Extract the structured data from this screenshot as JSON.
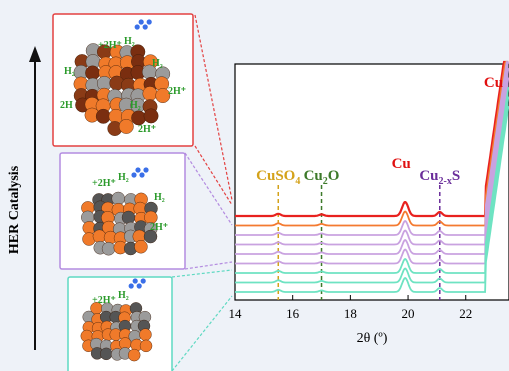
{
  "chart_data": {
    "type": "line",
    "title": "",
    "xlabel": "2θ (º)",
    "ylabel": "",
    "xlim": [
      14,
      23.5
    ],
    "xticks": [
      "14",
      "16",
      "18",
      "20",
      "22"
    ],
    "grid": false,
    "series": [
      {
        "color": "#e8211e",
        "offset": 8
      },
      {
        "color": "#f47a30",
        "offset": 7
      },
      {
        "color": "#c9a2e0",
        "offset": 6
      },
      {
        "color": "#c9a2e0",
        "offset": 5
      },
      {
        "color": "#c9a2e0",
        "offset": 4
      },
      {
        "color": "#c9a2e0",
        "offset": 3
      },
      {
        "color": "#6ee3c2",
        "offset": 2
      },
      {
        "color": "#6ee3c2",
        "offset": 1
      },
      {
        "color": "#6ee3c2",
        "offset": 0
      }
    ],
    "reference_lines": [
      {
        "x": 15.5,
        "label_main": "CuSO",
        "label_sub": "4",
        "label_tail": "",
        "color": "#d4a21a"
      },
      {
        "x": 17.0,
        "label_main": "Cu",
        "label_sub": "2",
        "label_tail": "O",
        "color": "#3d7a2a"
      },
      {
        "x": 21.1,
        "label_main": "Cu",
        "label_sub": "2-x",
        "label_tail": "S",
        "color": "#6a2d9a"
      }
    ],
    "peak_labels": [
      {
        "text": "Cu",
        "x": 19.9
      },
      {
        "text": "Cu",
        "x": 23.1
      }
    ]
  },
  "side_label": "HER Catalysis",
  "panels": [
    {
      "labels": [
        "+2H⁺",
        "H₂",
        "H₂",
        "H₂",
        "2H⁺",
        "2H",
        "H₂",
        "2H⁺"
      ]
    },
    {
      "labels": [
        "+2H⁺",
        "H₂",
        "H₂",
        "2H⁺"
      ]
    },
    {
      "labels": [
        "+2H⁺",
        "H₂"
      ]
    }
  ],
  "colors": {
    "axis": "#000000",
    "cu_label": "#e01010",
    "arrow": "#111111",
    "panel_top": "#e34141",
    "panel_mid": "#b48ce0",
    "panel_bot": "#5fd9c2",
    "h_text": "#2a9a2a"
  }
}
